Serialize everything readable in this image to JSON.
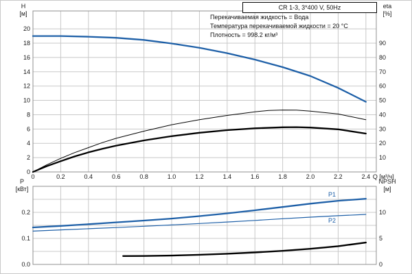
{
  "annotations": [
    "Перекачиваемая жидкость = Вода",
    "Температура перекачиваемой жидкости = 20 °C",
    "Плотность = 998.2 кг/м³"
  ],
  "curve_labels": {
    "p1": "P1",
    "p2": "P2"
  },
  "colors": {
    "blue": "#1d5fa7",
    "black": "#000000",
    "grid": "#c8c8c8",
    "frame": "#8f8f8f",
    "text": "#1a1a1a"
  },
  "chart_data": [
    {
      "type": "line",
      "title": "CR 1-3, 3*400 V, 50Hz",
      "x_axis": {
        "label": "Q [м³/ч]",
        "min": 0,
        "max": 2.475,
        "show_labels": true,
        "ticks": [
          {
            "v": 0,
            "t": "0"
          },
          {
            "v": 0.2,
            "t": "0.2"
          },
          {
            "v": 0.4,
            "t": "0.4"
          },
          {
            "v": 0.6,
            "t": "0.6"
          },
          {
            "v": 0.8,
            "t": "0.8"
          },
          {
            "v": 1.0,
            "t": "1.0"
          },
          {
            "v": 1.2,
            "t": "1.2"
          },
          {
            "v": 1.4,
            "t": "1.4"
          },
          {
            "v": 1.6,
            "t": "1.6"
          },
          {
            "v": 1.8,
            "t": "1.8"
          },
          {
            "v": 2.0,
            "t": "2.0"
          },
          {
            "v": 2.2,
            "t": "2.2"
          },
          {
            "v": 2.4,
            "t": "2.4"
          }
        ]
      },
      "y_left": {
        "label": "H",
        "unit": "[м]",
        "min": 0,
        "max": 22.5,
        "ticks": [
          {
            "v": 0,
            "t": "0"
          },
          {
            "v": 2,
            "t": "2"
          },
          {
            "v": 4,
            "t": "4"
          },
          {
            "v": 6,
            "t": "6"
          },
          {
            "v": 8,
            "t": "8"
          },
          {
            "v": 10,
            "t": "10"
          },
          {
            "v": 12,
            "t": "12"
          },
          {
            "v": 14,
            "t": "14"
          },
          {
            "v": 16,
            "t": "16"
          },
          {
            "v": 18,
            "t": "18"
          },
          {
            "v": 20,
            "t": "20"
          }
        ]
      },
      "y_right": {
        "label": "eta",
        "unit": "[%]",
        "min": 0,
        "max": 112.5,
        "ticks": [
          {
            "v": 10,
            "t": "10"
          },
          {
            "v": 20,
            "t": "20"
          },
          {
            "v": 30,
            "t": "30"
          },
          {
            "v": 40,
            "t": "40"
          },
          {
            "v": 50,
            "t": "50"
          },
          {
            "v": 60,
            "t": "60"
          },
          {
            "v": 70,
            "t": "70"
          },
          {
            "v": 80,
            "t": "80"
          },
          {
            "v": 90,
            "t": "90"
          }
        ]
      },
      "grid_y": [
        2,
        4,
        6,
        8,
        10,
        12,
        14,
        16,
        18,
        20
      ],
      "series": [
        {
          "name": "H",
          "axis": "left",
          "color": "blue",
          "width": 2.3,
          "points": [
            [
              0,
              19.0
            ],
            [
              0.2,
              19.0
            ],
            [
              0.4,
              18.9
            ],
            [
              0.6,
              18.75
            ],
            [
              0.8,
              18.45
            ],
            [
              1.0,
              17.95
            ],
            [
              1.2,
              17.35
            ],
            [
              1.4,
              16.6
            ],
            [
              1.6,
              15.7
            ],
            [
              1.8,
              14.65
            ],
            [
              2.0,
              13.4
            ],
            [
              2.2,
              11.75
            ],
            [
              2.4,
              9.8
            ]
          ]
        },
        {
          "name": "eta-pump",
          "axis": "right",
          "color": "black",
          "width": 1,
          "points": [
            [
              0,
              0
            ],
            [
              0.1,
              5
            ],
            [
              0.2,
              9.5
            ],
            [
              0.3,
              13.5
            ],
            [
              0.4,
              17
            ],
            [
              0.5,
              20.5
            ],
            [
              0.6,
              23.5
            ],
            [
              0.8,
              28.5
            ],
            [
              1.0,
              33
            ],
            [
              1.2,
              36.5
            ],
            [
              1.4,
              39.5
            ],
            [
              1.6,
              42
            ],
            [
              1.7,
              43
            ],
            [
              1.8,
              43.3
            ],
            [
              1.9,
              43.2
            ],
            [
              2.0,
              42.5
            ],
            [
              2.2,
              40.5
            ],
            [
              2.4,
              36.5
            ]
          ]
        },
        {
          "name": "eta-pump-motor",
          "axis": "right",
          "color": "black",
          "width": 2.3,
          "points": [
            [
              0,
              0
            ],
            [
              0.1,
              4
            ],
            [
              0.2,
              7.5
            ],
            [
              0.3,
              10.8
            ],
            [
              0.4,
              13.7
            ],
            [
              0.5,
              16.2
            ],
            [
              0.6,
              18.4
            ],
            [
              0.8,
              22
            ],
            [
              1.0,
              25
            ],
            [
              1.2,
              27.4
            ],
            [
              1.4,
              29.2
            ],
            [
              1.6,
              30.5
            ],
            [
              1.8,
              31.2
            ],
            [
              1.9,
              31.3
            ],
            [
              2.0,
              31
            ],
            [
              2.2,
              29.8
            ],
            [
              2.4,
              26.8
            ]
          ]
        }
      ]
    },
    {
      "type": "line",
      "x_axis": {
        "label": "",
        "min": 0,
        "max": 2.475,
        "show_labels": false,
        "ticks": [
          {
            "v": 0,
            "t": "0"
          },
          {
            "v": 0.2,
            "t": "0.2"
          },
          {
            "v": 0.4,
            "t": "0.4"
          },
          {
            "v": 0.6,
            "t": "0.6"
          },
          {
            "v": 0.8,
            "t": "0.8"
          },
          {
            "v": 1.0,
            "t": "1.0"
          },
          {
            "v": 1.2,
            "t": "1.2"
          },
          {
            "v": 1.4,
            "t": "1.4"
          },
          {
            "v": 1.6,
            "t": "1.6"
          },
          {
            "v": 1.8,
            "t": "1.8"
          },
          {
            "v": 2.0,
            "t": "2.0"
          },
          {
            "v": 2.2,
            "t": "2.2"
          },
          {
            "v": 2.4,
            "t": "2.4"
          }
        ]
      },
      "y_left": {
        "label": "P",
        "unit": "[кВт]",
        "min": 0,
        "max": 0.3,
        "ticks": [
          {
            "v": 0,
            "t": "0.0"
          },
          {
            "v": 0.1,
            "t": "0.1"
          },
          {
            "v": 0.2,
            "t": "0.2"
          }
        ]
      },
      "y_right": {
        "label": "NPSH",
        "unit": "[м]",
        "min": 0,
        "max": 15,
        "ticks": [
          {
            "v": 0,
            "t": "0"
          },
          {
            "v": 5,
            "t": "5"
          },
          {
            "v": 10,
            "t": "10"
          }
        ]
      },
      "grid_y": [
        0.05,
        0.1,
        0.15,
        0.2,
        0.25
      ],
      "series": [
        {
          "name": "P1",
          "axis": "left",
          "color": "blue",
          "width": 2.3,
          "points": [
            [
              0,
              0.142
            ],
            [
              0.2,
              0.148
            ],
            [
              0.4,
              0.1545
            ],
            [
              0.6,
              0.1615
            ],
            [
              0.8,
              0.1685
            ],
            [
              1.0,
              0.176
            ],
            [
              1.2,
              0.1855
            ],
            [
              1.4,
              0.196
            ],
            [
              1.6,
              0.208
            ],
            [
              1.8,
              0.2205
            ],
            [
              2.0,
              0.2335
            ],
            [
              2.2,
              0.2445
            ],
            [
              2.4,
              0.252
            ]
          ]
        },
        {
          "name": "P2",
          "axis": "left",
          "color": "blue",
          "width": 1.2,
          "points": [
            [
              0,
              0.128
            ],
            [
              0.2,
              0.1325
            ],
            [
              0.4,
              0.137
            ],
            [
              0.6,
              0.1415
            ],
            [
              0.8,
              0.1465
            ],
            [
              1.0,
              0.1515
            ],
            [
              1.2,
              0.157
            ],
            [
              1.4,
              0.163
            ],
            [
              1.6,
              0.169
            ],
            [
              1.8,
              0.1755
            ],
            [
              2.0,
              0.1815
            ],
            [
              2.2,
              0.187
            ],
            [
              2.4,
              0.192
            ]
          ]
        },
        {
          "name": "NPSH",
          "axis": "right",
          "color": "black",
          "width": 2.4,
          "points": [
            [
              0.65,
              1.6
            ],
            [
              0.8,
              1.62
            ],
            [
              1.0,
              1.7
            ],
            [
              1.2,
              1.85
            ],
            [
              1.4,
              2.05
            ],
            [
              1.6,
              2.3
            ],
            [
              1.8,
              2.6
            ],
            [
              2.0,
              3.0
            ],
            [
              2.2,
              3.5
            ],
            [
              2.4,
              4.2
            ]
          ]
        }
      ]
    }
  ]
}
